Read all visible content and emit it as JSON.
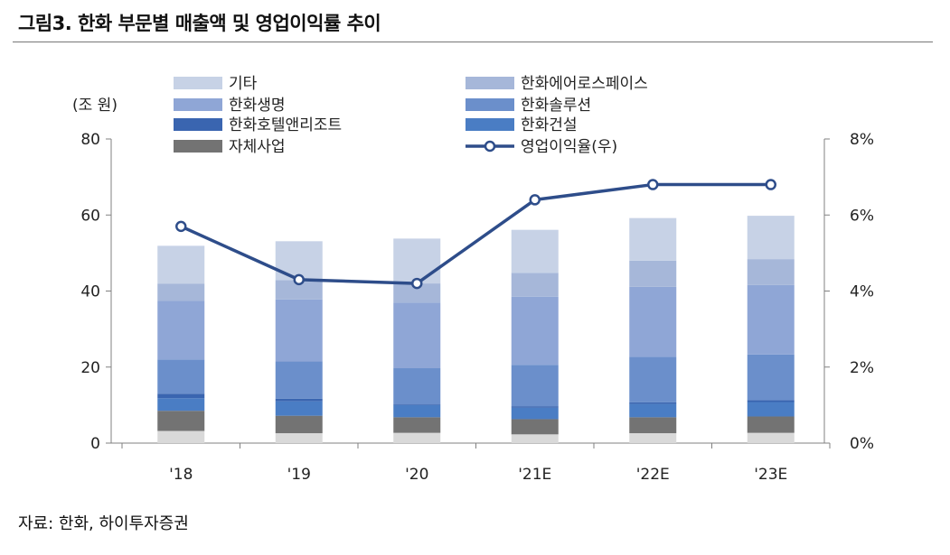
{
  "title": "그림3. 한화 부문별 매출액 및 영업이익률 추이",
  "source": "자료: 한화, 하이투자증권",
  "colors": {
    "axis": "#808080",
    "line": "#2e4d8a"
  },
  "chart_data": {
    "type": "bar",
    "stacked": true,
    "categories": [
      "'18",
      "'19",
      "'20",
      "'21E",
      "'22E",
      "'23E"
    ],
    "left_axis": {
      "label": "(조 원)",
      "min": 0,
      "max": 80,
      "ticks": [
        "0",
        "20",
        "40",
        "60",
        "80"
      ]
    },
    "right_axis": {
      "min": 0,
      "max": 8,
      "ticks": [
        "0%",
        "2%",
        "4%",
        "6%",
        "8%"
      ]
    },
    "grid": false,
    "legend_placement": "top",
    "series": [
      {
        "name": "자체사업",
        "color": "#737373",
        "values": [
          5.3,
          4.6,
          4.1,
          4.0,
          4.2,
          4.3
        ]
      },
      {
        "name": "한화건설",
        "color": "#4a7dc4",
        "values": [
          3.3,
          3.8,
          3.2,
          3.0,
          3.5,
          3.8
        ]
      },
      {
        "name": "한화호텔앤리조트",
        "color": "#3a65b0",
        "values": [
          1.2,
          0.7,
          0.2,
          0.4,
          0.4,
          0.5
        ]
      },
      {
        "name": "한화솔루션",
        "color": "#6b8fcb",
        "values": [
          9.0,
          9.8,
          9.5,
          10.9,
          12.0,
          12.0
        ]
      },
      {
        "name": "한화생명",
        "color": "#8fa6d6",
        "values": [
          15.4,
          16.3,
          17.2,
          17.9,
          18.4,
          18.3
        ]
      },
      {
        "name": "한화에어로스페이스",
        "color": "#a6b7d9",
        "values": [
          4.5,
          5.1,
          5.1,
          6.3,
          6.9,
          6.8
        ]
      },
      {
        "name": "기타",
        "color": "#c7d2e6",
        "values": [
          10.0,
          10.2,
          11.8,
          11.3,
          11.2,
          11.4
        ]
      }
    ],
    "base_values": [
      3.2,
      2.6,
      2.7,
      2.3,
      2.6,
      2.7
    ],
    "base_color": "#d9d9d9",
    "line_series": {
      "name": "영업이익율(우)",
      "axis": "right",
      "values": [
        5.7,
        4.3,
        4.2,
        6.4,
        6.8,
        6.8
      ]
    },
    "legend_order": [
      "기타",
      "한화에어로스페이스",
      "한화생명",
      "한화솔루션",
      "한화호텔앤리조트",
      "한화건설",
      "자체사업",
      "영업이익율(우)"
    ]
  }
}
